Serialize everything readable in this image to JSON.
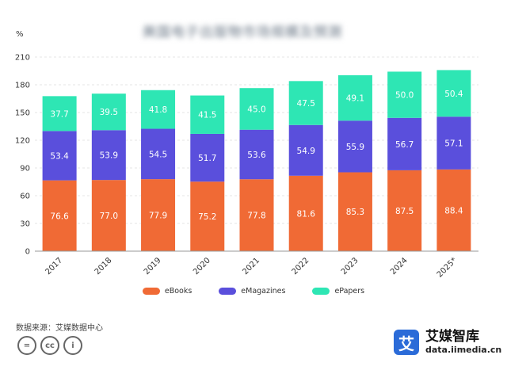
{
  "title_obscured": "美国电子出版物市场规模及预测",
  "y_unit": "%",
  "source": "数据来源：艾媒数据中心",
  "brand": {
    "name": "艾媒智库",
    "url": "data.iimedia.cn",
    "logo_char": "艾"
  },
  "cc_icons": [
    "=",
    "cc",
    "i"
  ],
  "colors": {
    "eBooks": "#f06a35",
    "eMagazines": "#5a4fdc",
    "ePapers": "#2ee6b4",
    "grid": "#e6e6e6",
    "axis": "#999999"
  },
  "chart_data": {
    "type": "bar",
    "stacked": true,
    "categories": [
      "2017",
      "2018",
      "2019",
      "2020",
      "2021",
      "2022",
      "2023",
      "2024",
      "2025*"
    ],
    "series": [
      {
        "name": "eBooks",
        "values": [
          76.6,
          77.0,
          77.9,
          75.2,
          77.8,
          81.6,
          85.3,
          87.5,
          88.4
        ]
      },
      {
        "name": "eMagazines",
        "values": [
          53.4,
          53.9,
          54.5,
          51.7,
          53.6,
          54.9,
          55.9,
          56.7,
          57.1
        ]
      },
      {
        "name": "ePapers",
        "values": [
          37.7,
          39.5,
          41.8,
          41.5,
          45.0,
          47.5,
          49.1,
          50.0,
          50.4
        ]
      }
    ],
    "ylim": [
      0,
      210
    ],
    "yticks": [
      0,
      30,
      60,
      90,
      120,
      150,
      180,
      210
    ],
    "ylabel": "%",
    "grid": true,
    "legend_position": "bottom"
  }
}
